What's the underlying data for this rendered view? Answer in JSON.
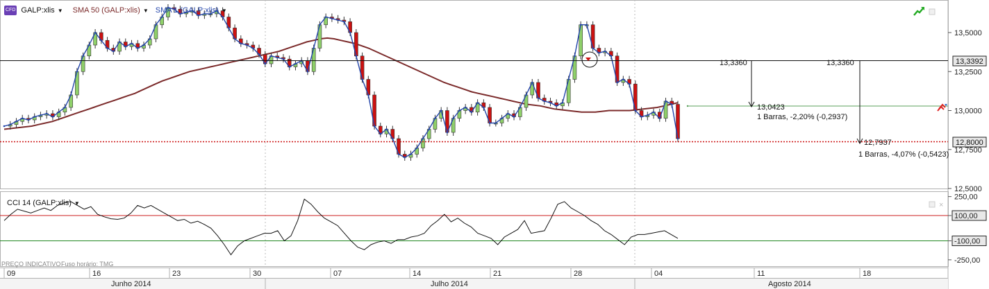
{
  "header": {
    "symbol_badge": "CFD",
    "symbol": "GALP:xlis",
    "sma50_label": "SMA 50 (GALP:xlis)",
    "sma1_label": "SMA 1 (GALP:xlis)"
  },
  "lower_panel": {
    "title": "CCI 14 (GALP:xlis)",
    "footer_left": "PREÇO INDICATIVO",
    "footer_tz": "Fuso horário: TMG"
  },
  "annotations": {
    "level_left": "13,3360",
    "level_right": "13,3360",
    "target1_price": "13,0423",
    "target1_desc": "1 Barras, -2,20% (-0,2937)",
    "target2_price": "12,7937",
    "target2_desc": "1 Barras, -4,07% (-0,5423)",
    "tag_current": "13,3392",
    "tag_low": "12,8000"
  },
  "colors": {
    "up_candle": "#8fd06a",
    "down_candle": "#cc1111",
    "sma50": "#7b2a2a",
    "sma1": "#2244aa",
    "cci_line": "#111111",
    "cci_upper": "#cc2222",
    "cci_lower": "#228822",
    "tag_bg": "#e8e8e8"
  },
  "chart_data": [
    {
      "type": "candlestick",
      "title": "",
      "ylim": [
        12.5,
        13.7
      ],
      "y_ticks": [
        "13,5000",
        "13,2500",
        "13,0000",
        "12,7500",
        "12,5000"
      ],
      "x_ticks": [
        "09",
        "16",
        "23",
        "30",
        "07",
        "14",
        "21",
        "28",
        "04",
        "11",
        "18"
      ],
      "months": [
        "Junho 2014",
        "Julho 2014",
        "Agosto 2014"
      ],
      "reference_lines": [
        13.336,
        12.8,
        13.0423
      ],
      "series": [
        {
          "name": "SMA 50 (GALP:xlis)",
          "values": [
            12.88,
            12.885,
            12.89,
            12.895,
            12.9,
            12.91,
            12.92,
            12.93,
            12.945,
            12.96,
            12.975,
            12.99,
            13.005,
            13.02,
            13.035,
            13.05,
            13.065,
            13.08,
            13.095,
            13.11,
            13.13,
            13.15,
            13.17,
            13.19,
            13.205,
            13.22,
            13.235,
            13.25,
            13.26,
            13.27,
            13.28,
            13.29,
            13.3,
            13.31,
            13.32,
            13.33,
            13.34,
            13.35,
            13.36,
            13.37,
            13.38,
            13.395,
            13.41,
            13.425,
            13.44,
            13.45,
            13.46,
            13.465,
            13.46,
            13.45,
            13.44,
            13.43,
            13.415,
            13.4,
            13.38,
            13.36,
            13.34,
            13.32,
            13.3,
            13.28,
            13.26,
            13.24,
            13.22,
            13.2,
            13.18,
            13.165,
            13.15,
            13.135,
            13.12,
            13.11,
            13.1,
            13.09,
            13.08,
            13.07,
            13.06,
            13.05,
            13.04,
            13.035,
            13.03,
            13.02,
            13.01,
            13.005,
            13.0,
            12.995,
            12.99,
            12.99,
            12.99,
            12.995,
            13.0,
            13.0,
            13.0,
            13.0,
            13.005,
            13.01,
            13.015,
            13.02,
            13.03,
            13.04,
            13.05
          ]
        },
        {
          "name": "SMA 1 (GALP:xlis)",
          "values": [
            12.9,
            12.91,
            12.93,
            12.95,
            12.94,
            12.96,
            12.97,
            12.98,
            12.96,
            12.99,
            13.02,
            13.1,
            13.25,
            13.35,
            13.42,
            13.5,
            13.45,
            13.4,
            13.38,
            13.44,
            13.41,
            13.43,
            13.4,
            13.42,
            13.46,
            13.55,
            13.6,
            13.66,
            13.65,
            13.62,
            13.63,
            13.64,
            13.61,
            13.62,
            13.62,
            13.64,
            13.6,
            13.53,
            13.46,
            13.43,
            13.42,
            13.4,
            13.36,
            13.3,
            13.35,
            13.34,
            13.33,
            13.28,
            13.3,
            13.32,
            13.25,
            13.4,
            13.55,
            13.6,
            13.59,
            13.58,
            13.57,
            13.5,
            13.35,
            13.2,
            13.1,
            12.9,
            12.85,
            12.88,
            12.82,
            12.72,
            12.7,
            12.72,
            12.76,
            12.82,
            12.88,
            12.95,
            13.0,
            12.86,
            12.95,
            13.0,
            13.02,
            12.99,
            13.05,
            13.02,
            12.92,
            12.92,
            12.95,
            12.98,
            12.96,
            13.02,
            13.1,
            13.18,
            13.08,
            13.06,
            13.05,
            13.03,
            13.05,
            13.2,
            13.35,
            13.55,
            13.55,
            13.4,
            13.37,
            13.38,
            13.35,
            13.18,
            13.2,
            13.17,
            13.0,
            12.96,
            12.97,
            12.99,
            12.95,
            13.06,
            13.04,
            12.82
          ]
        }
      ]
    },
    {
      "type": "line",
      "title": "CCI 14 (GALP:xlis)",
      "ylim": [
        -300,
        270
      ],
      "y_ticks": [
        "250,00",
        "100,00",
        "-100,00",
        "-250,00"
      ],
      "reference_lines": [
        100,
        -100
      ],
      "series": [
        {
          "name": "CCI 14 (GALP:xlis)",
          "values": [
            60,
            110,
            150,
            135,
            120,
            140,
            160,
            140,
            180,
            200,
            210,
            180,
            150,
            170,
            110,
            90,
            75,
            70,
            80,
            120,
            180,
            160,
            180,
            150,
            120,
            90,
            60,
            70,
            40,
            55,
            30,
            0,
            -60,
            -130,
            -210,
            -140,
            -100,
            -80,
            -60,
            -40,
            -40,
            -20,
            -100,
            -60,
            60,
            230,
            190,
            130,
            80,
            50,
            20,
            -40,
            -100,
            -150,
            -170,
            -130,
            -110,
            -100,
            -120,
            -90,
            -90,
            -70,
            -60,
            -40,
            20,
            60,
            110,
            50,
            80,
            40,
            10,
            -40,
            -60,
            -80,
            -130,
            -70,
            -40,
            -10,
            60,
            -40,
            -30,
            -20,
            80,
            190,
            210,
            160,
            130,
            100,
            60,
            30,
            -20,
            -50,
            -90,
            -130,
            -70,
            -50,
            -50,
            -40,
            -30,
            -20,
            -50,
            -80
          ]
        }
      ]
    }
  ]
}
